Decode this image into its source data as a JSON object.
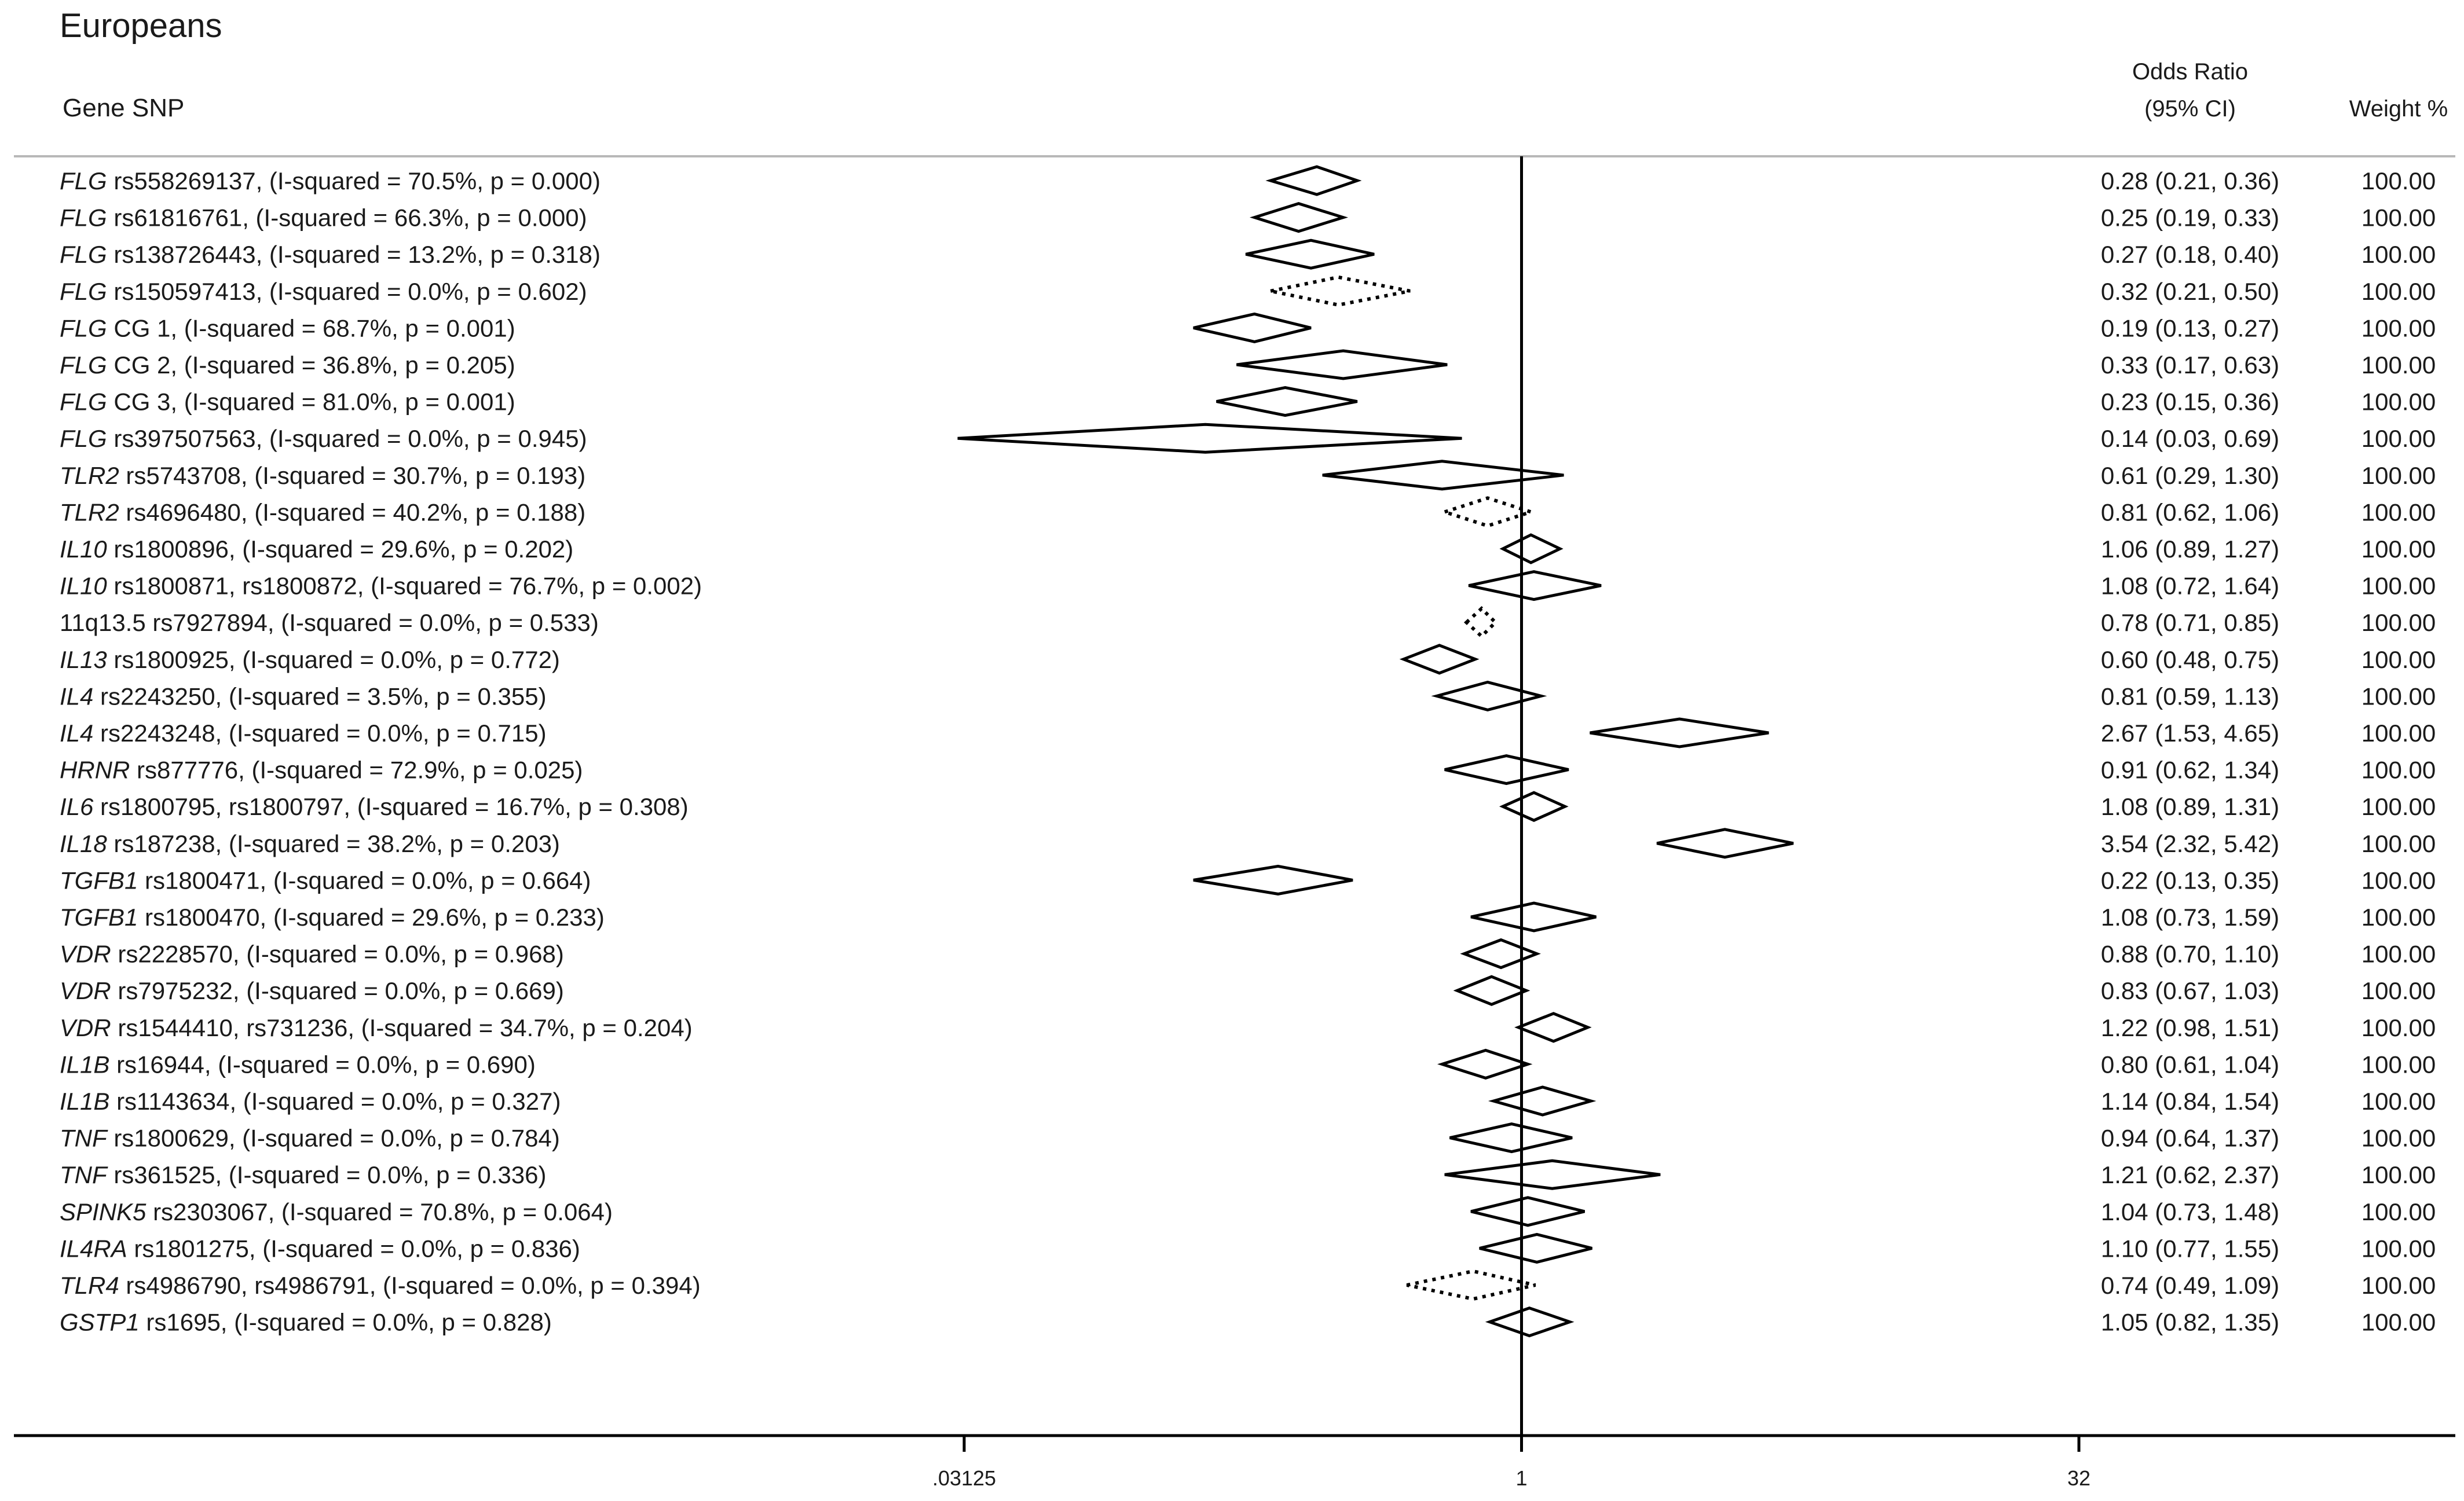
{
  "chart_data": {
    "type": "forest",
    "title": "Europeans",
    "header": {
      "label_col": "Gene SNP",
      "or_line1": "Odds Ratio",
      "or_line2": "(95% CI)",
      "weight": "Weight %"
    },
    "x_scale": "log2",
    "xlim": [
      0.03125,
      32
    ],
    "x_ticks": [
      {
        "value": 0.03125,
        "label": ".03125"
      },
      {
        "value": 1,
        "label": "1"
      },
      {
        "value": 32,
        "label": "32"
      }
    ],
    "reference_line": 1,
    "rows": [
      {
        "gene": "FLG",
        "rest": " rs558269137, (I-squared = 70.5%, p = 0.000)",
        "or": 0.28,
        "lo": 0.21,
        "hi": 0.36,
        "ci_text": "0.28 (0.21, 0.36)",
        "weight": "100.00",
        "dotted": false
      },
      {
        "gene": "FLG",
        "rest": " rs61816761, (I-squared = 66.3%, p = 0.000)",
        "or": 0.25,
        "lo": 0.19,
        "hi": 0.33,
        "ci_text": "0.25 (0.19, 0.33)",
        "weight": "100.00",
        "dotted": false
      },
      {
        "gene": "FLG",
        "rest": " rs138726443, (I-squared = 13.2%, p = 0.318)",
        "or": 0.27,
        "lo": 0.18,
        "hi": 0.4,
        "ci_text": "0.27 (0.18, 0.40)",
        "weight": "100.00",
        "dotted": false
      },
      {
        "gene": "FLG",
        "rest": " rs150597413, (I-squared = 0.0%, p = 0.602)",
        "or": 0.32,
        "lo": 0.21,
        "hi": 0.5,
        "ci_text": "0.32 (0.21, 0.50)",
        "weight": "100.00",
        "dotted": true
      },
      {
        "gene": "FLG",
        "rest": " CG 1, (I-squared = 68.7%, p = 0.001)",
        "or": 0.19,
        "lo": 0.13,
        "hi": 0.27,
        "ci_text": "0.19 (0.13, 0.27)",
        "weight": "100.00",
        "dotted": false
      },
      {
        "gene": "FLG",
        "rest": " CG 2, (I-squared = 36.8%, p = 0.205)",
        "or": 0.33,
        "lo": 0.17,
        "hi": 0.63,
        "ci_text": "0.33 (0.17, 0.63)",
        "weight": "100.00",
        "dotted": false
      },
      {
        "gene": "FLG",
        "rest": " CG 3, (I-squared = 81.0%, p = 0.001)",
        "or": 0.23,
        "lo": 0.15,
        "hi": 0.36,
        "ci_text": "0.23 (0.15, 0.36)",
        "weight": "100.00",
        "dotted": false
      },
      {
        "gene": "FLG",
        "rest": " rs397507563, (I-squared = 0.0%, p = 0.945)",
        "or": 0.14,
        "lo": 0.03,
        "hi": 0.69,
        "ci_text": "0.14 (0.03, 0.69)",
        "weight": "100.00",
        "dotted": false
      },
      {
        "gene": "TLR2",
        "rest": " rs5743708, (I-squared = 30.7%, p = 0.193)",
        "or": 0.61,
        "lo": 0.29,
        "hi": 1.3,
        "ci_text": "0.61 (0.29, 1.30)",
        "weight": "100.00",
        "dotted": false
      },
      {
        "gene": "TLR2",
        "rest": " rs4696480, (I-squared = 40.2%, p = 0.188)",
        "or": 0.81,
        "lo": 0.62,
        "hi": 1.06,
        "ci_text": "0.81 (0.62, 1.06)",
        "weight": "100.00",
        "dotted": true
      },
      {
        "gene": "IL10",
        "rest": " rs1800896, (I-squared = 29.6%, p = 0.202)",
        "or": 1.06,
        "lo": 0.89,
        "hi": 1.27,
        "ci_text": "1.06 (0.89, 1.27)",
        "weight": "100.00",
        "dotted": false
      },
      {
        "gene": "IL10",
        "rest": " rs1800871, rs1800872, (I-squared = 76.7%, p = 0.002)",
        "or": 1.08,
        "lo": 0.72,
        "hi": 1.64,
        "ci_text": "1.08 (0.72, 1.64)",
        "weight": "100.00",
        "dotted": false
      },
      {
        "gene": "",
        "rest": "11q13.5 rs7927894, (I-squared = 0.0%, p = 0.533)",
        "or": 0.78,
        "lo": 0.71,
        "hi": 0.85,
        "ci_text": "0.78 (0.71, 0.85)",
        "weight": "100.00",
        "dotted": true
      },
      {
        "gene": "IL13",
        "rest": " rs1800925, (I-squared = 0.0%, p = 0.772)",
        "or": 0.6,
        "lo": 0.48,
        "hi": 0.75,
        "ci_text": "0.60 (0.48, 0.75)",
        "weight": "100.00",
        "dotted": false
      },
      {
        "gene": "IL4",
        "rest": " rs2243250, (I-squared = 3.5%, p = 0.355)",
        "or": 0.81,
        "lo": 0.59,
        "hi": 1.13,
        "ci_text": "0.81 (0.59, 1.13)",
        "weight": "100.00",
        "dotted": false
      },
      {
        "gene": "IL4",
        "rest": " rs2243248, (I-squared = 0.0%, p = 0.715)",
        "or": 2.67,
        "lo": 1.53,
        "hi": 4.65,
        "ci_text": "2.67 (1.53, 4.65)",
        "weight": "100.00",
        "dotted": false
      },
      {
        "gene": "HRNR",
        "rest": " rs877776, (I-squared = 72.9%, p = 0.025)",
        "or": 0.91,
        "lo": 0.62,
        "hi": 1.34,
        "ci_text": "0.91 (0.62, 1.34)",
        "weight": "100.00",
        "dotted": false
      },
      {
        "gene": "IL6",
        "rest": " rs1800795, rs1800797, (I-squared = 16.7%, p = 0.308)",
        "or": 1.08,
        "lo": 0.89,
        "hi": 1.31,
        "ci_text": "1.08 (0.89, 1.31)",
        "weight": "100.00",
        "dotted": false
      },
      {
        "gene": "IL18",
        "rest": " rs187238, (I-squared = 38.2%, p = 0.203)",
        "or": 3.54,
        "lo": 2.32,
        "hi": 5.42,
        "ci_text": "3.54 (2.32, 5.42)",
        "weight": "100.00",
        "dotted": false
      },
      {
        "gene": "TGFB1",
        "rest": " rs1800471, (I-squared = 0.0%, p = 0.664)",
        "or": 0.22,
        "lo": 0.13,
        "hi": 0.35,
        "ci_text": "0.22 (0.13, 0.35)",
        "weight": "100.00",
        "dotted": false
      },
      {
        "gene": "TGFB1",
        "rest": " rs1800470, (I-squared = 29.6%, p = 0.233)",
        "or": 1.08,
        "lo": 0.73,
        "hi": 1.59,
        "ci_text": "1.08 (0.73, 1.59)",
        "weight": "100.00",
        "dotted": false
      },
      {
        "gene": "VDR",
        "rest": " rs2228570, (I-squared = 0.0%, p = 0.968)",
        "or": 0.88,
        "lo": 0.7,
        "hi": 1.1,
        "ci_text": "0.88 (0.70, 1.10)",
        "weight": "100.00",
        "dotted": false
      },
      {
        "gene": "VDR",
        "rest": " rs7975232, (I-squared = 0.0%, p = 0.669)",
        "or": 0.83,
        "lo": 0.67,
        "hi": 1.03,
        "ci_text": "0.83 (0.67, 1.03)",
        "weight": "100.00",
        "dotted": false
      },
      {
        "gene": "VDR",
        "rest": " rs1544410, rs731236, (I-squared = 34.7%, p = 0.204)",
        "or": 1.22,
        "lo": 0.98,
        "hi": 1.51,
        "ci_text": "1.22 (0.98, 1.51)",
        "weight": "100.00",
        "dotted": false
      },
      {
        "gene": "IL1B",
        "rest": " rs16944, (I-squared = 0.0%, p = 0.690)",
        "or": 0.8,
        "lo": 0.61,
        "hi": 1.04,
        "ci_text": "0.80 (0.61, 1.04)",
        "weight": "100.00",
        "dotted": false
      },
      {
        "gene": "IL1B",
        "rest": " rs1143634, (I-squared = 0.0%, p = 0.327)",
        "or": 1.14,
        "lo": 0.84,
        "hi": 1.54,
        "ci_text": "1.14 (0.84, 1.54)",
        "weight": "100.00",
        "dotted": false
      },
      {
        "gene": "TNF",
        "rest": " rs1800629, (I-squared = 0.0%, p = 0.784)",
        "or": 0.94,
        "lo": 0.64,
        "hi": 1.37,
        "ci_text": "0.94 (0.64, 1.37)",
        "weight": "100.00",
        "dotted": false
      },
      {
        "gene": "TNF",
        "rest": " rs361525, (I-squared = 0.0%, p = 0.336)",
        "or": 1.21,
        "lo": 0.62,
        "hi": 2.37,
        "ci_text": "1.21 (0.62, 2.37)",
        "weight": "100.00",
        "dotted": false
      },
      {
        "gene": "SPINK5",
        "rest": " rs2303067, (I-squared = 70.8%, p = 0.064)",
        "or": 1.04,
        "lo": 0.73,
        "hi": 1.48,
        "ci_text": "1.04 (0.73, 1.48)",
        "weight": "100.00",
        "dotted": false
      },
      {
        "gene": "IL4RA",
        "rest": " rs1801275, (I-squared = 0.0%, p = 0.836)",
        "or": 1.1,
        "lo": 0.77,
        "hi": 1.55,
        "ci_text": "1.10 (0.77, 1.55)",
        "weight": "100.00",
        "dotted": false
      },
      {
        "gene": "TLR4",
        "rest": " rs4986790, rs4986791, (I-squared = 0.0%, p = 0.394)",
        "or": 0.74,
        "lo": 0.49,
        "hi": 1.09,
        "ci_text": "0.74 (0.49, 1.09)",
        "weight": "100.00",
        "dotted": true
      },
      {
        "gene": "GSTP1",
        "rest": " rs1695, (I-squared = 0.0%, p = 0.828)",
        "or": 1.05,
        "lo": 0.82,
        "hi": 1.35,
        "ci_text": "1.05 (0.82, 1.35)",
        "weight": "100.00",
        "dotted": false
      }
    ]
  }
}
